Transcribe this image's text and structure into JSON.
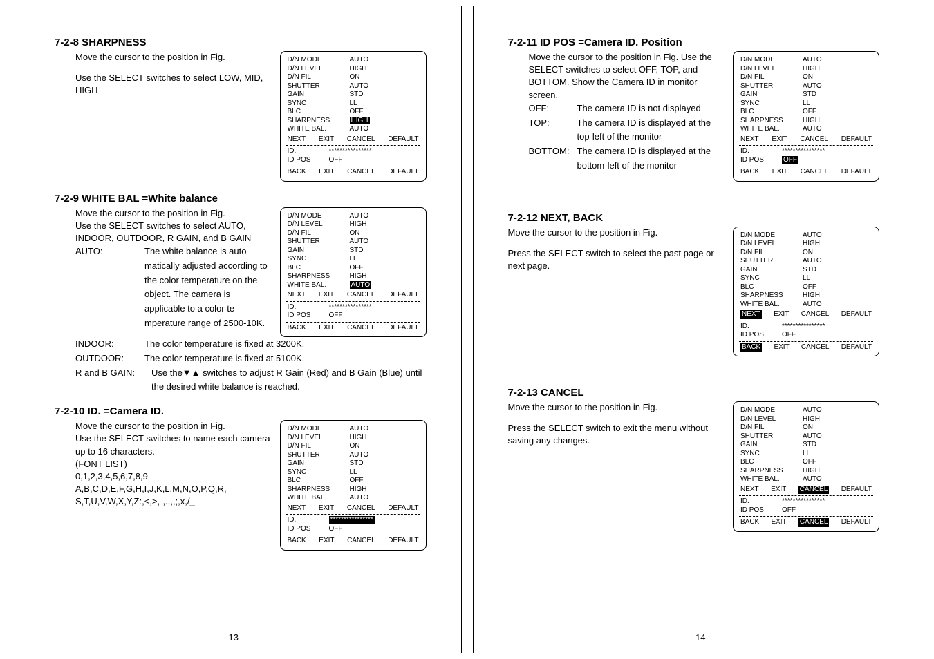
{
  "left_page_num": "- 13 -",
  "right_page_num": "- 14 -",
  "menu": {
    "rows": [
      {
        "label": "D/N MODE",
        "val": "AUTO"
      },
      {
        "label": "D/N LEVEL",
        "val": "HIGH"
      },
      {
        "label": "D/N FIL",
        "val": "ON"
      },
      {
        "label": "SHUTTER",
        "val": "AUTO"
      },
      {
        "label": "GAIN",
        "val": "STD"
      },
      {
        "label": "SYNC",
        "val": "LL"
      },
      {
        "label": "BLC",
        "val": "OFF"
      },
      {
        "label": "SHARPNESS",
        "val": "HIGH"
      },
      {
        "label": "WHITE BAL.",
        "val": "AUTO"
      }
    ],
    "nav1": [
      "NEXT",
      "EXIT",
      "CANCEL",
      "DEFAULT"
    ],
    "id_label": "ID.",
    "id_val": "****************",
    "idpos_label": "ID POS",
    "idpos_val": "OFF",
    "nav2": [
      "BACK",
      "EXIT",
      "CANCEL",
      "DEFAULT"
    ]
  },
  "s728": {
    "title": "7-2-8 SHARPNESS",
    "p1": "Move the cursor to the position in Fig.",
    "p2": "Use the SELECT switches to select LOW, MID, HIGH"
  },
  "s729": {
    "title": "7-2-9 WHITE BAL =White balance",
    "p1": "Move the cursor to the position in Fig.",
    "p2": "Use the SELECT switches to select AUTO, INDOOR, OUTDOOR, R GAIN, and B GAIN",
    "auto_label": "AUTO:",
    "auto_text": "The white balance is auto matically adjusted  according to the color temperature on the object. The camera is applicable to a color te mperature range of 2500-10K.",
    "indoor_label": "INDOOR:",
    "indoor_text": "The color temperature is fixed at 3200K.",
    "outdoor_label": "OUTDOOR:",
    "outdoor_text": "The color temperature is fixed at 5100K.",
    "rb_label": "R and B GAIN:",
    "rb_text": "Use the▼▲ switches to adjust R Gain (Red) and B Gain (Blue) until the desired white balance is reached."
  },
  "s7210": {
    "title": "7-2-10 ID. =Camera ID.",
    "p1": "Move the cursor to the position in Fig.",
    "p2": "Use the SELECT switches to name each camera up to 16 characters.",
    "p3": "(FONT LIST)",
    "p4": "0,1,2,3,4,5,6,7,8,9",
    "p5": "A,B,C,D,E,F,G,H,I,J,K,L,M,N,O,P,Q,R,",
    "p6": "S,T,U,V,W,X,Y,Z:,<,>,-,.,,,;,x,/_"
  },
  "s7211": {
    "title": "7-2-11 ID POS =Camera ID. Position",
    "p1": "Move the cursor to the position in Fig. Use the SELECT switches to select OFF, TOP, and BOTTOM. Show the Camera ID in monitor screen.",
    "off_label": "OFF:",
    "off_text": "The camera ID is not displayed",
    "top_label": "TOP:",
    "top_text": "The camera ID is displayed at the top-left of the monitor",
    "bottom_label": "BOTTOM:",
    "bottom_text": "The camera ID is displayed at the bottom-left of the monitor"
  },
  "s7212": {
    "title": "7-2-12 NEXT, BACK",
    "p1": "Move the cursor to the position in Fig.",
    "p2": "Press the SELECT switch to select the past page or next page."
  },
  "s7213": {
    "title": "7-2-13 CANCEL",
    "p1": "Move the cursor to the position in Fig.",
    "p2": "Press the SELECT switch to exit the menu without saving any changes."
  }
}
